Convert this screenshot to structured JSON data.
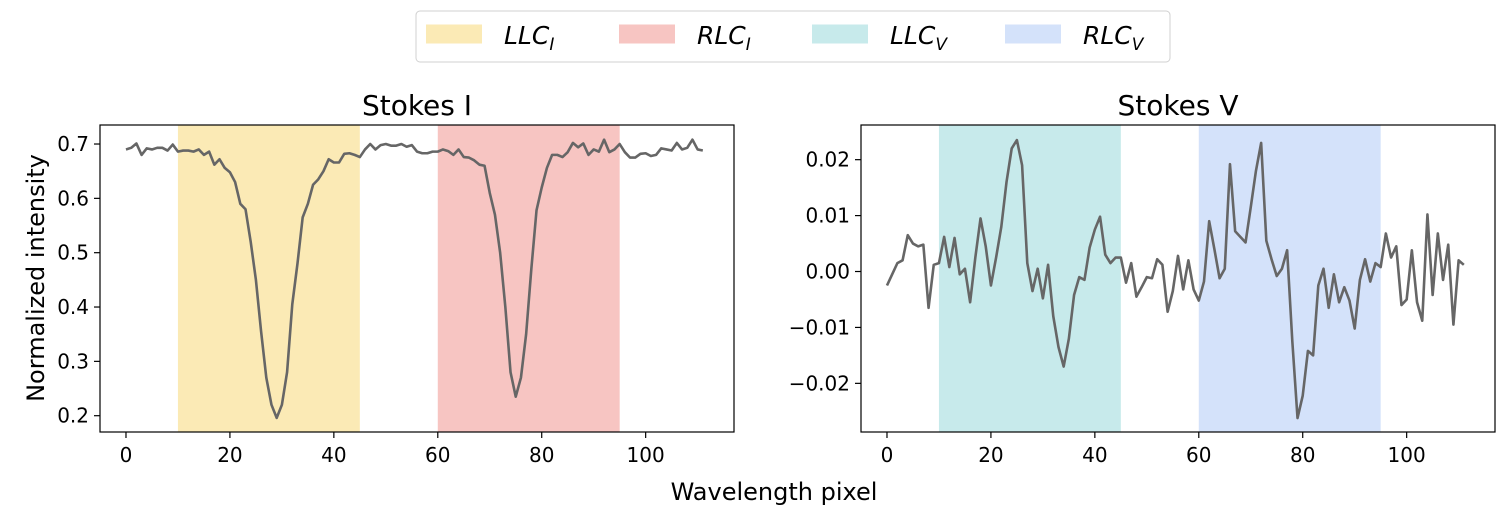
{
  "figure": {
    "xlabel": "Wavelength pixel",
    "ylabel": "Normalized intensity"
  },
  "legend": {
    "location": "top-center",
    "items": [
      {
        "main": "LLC",
        "sub": "I",
        "color": "#f8d56b",
        "alpha": 0.5
      },
      {
        "main": "RLC",
        "sub": "I",
        "color": "#f08c85",
        "alpha": 0.5
      },
      {
        "main": "LLC",
        "sub": "V",
        "color": "#8fd6d8",
        "alpha": 0.5
      },
      {
        "main": "RLC",
        "sub": "V",
        "color": "#a9c6f6",
        "alpha": 0.5
      }
    ]
  },
  "chart_data": [
    {
      "type": "line",
      "title": "Stokes I",
      "xlabel": "Wavelength pixel",
      "ylabel": "Normalized intensity",
      "xlim": [
        -5,
        117
      ],
      "ylim": [
        0.17,
        0.735
      ],
      "xticks": [
        0,
        20,
        40,
        60,
        80,
        100
      ],
      "yticks": [
        0.2,
        0.3,
        0.4,
        0.5,
        0.6,
        0.7
      ],
      "ytick_labels": [
        "0.2",
        "0.3",
        "0.4",
        "0.5",
        "0.6",
        "0.7"
      ],
      "line_color": "#666666",
      "bands": [
        {
          "label": "LLC_I",
          "x0": 10,
          "x1": 45,
          "color": "#f8d56b"
        },
        {
          "label": "RLC_I",
          "x0": 60,
          "x1": 95,
          "color": "#f08c85"
        }
      ],
      "series": [
        {
          "name": "Stokes I",
          "x": [
            0,
            1,
            2,
            3,
            4,
            5,
            6,
            7,
            8,
            9,
            10,
            11,
            12,
            13,
            14,
            15,
            16,
            17,
            18,
            19,
            20,
            21,
            22,
            23,
            24,
            25,
            26,
            27,
            28,
            29,
            30,
            31,
            32,
            33,
            34,
            35,
            36,
            37,
            38,
            39,
            40,
            41,
            42,
            43,
            44,
            45,
            46,
            47,
            48,
            49,
            50,
            51,
            52,
            53,
            54,
            55,
            56,
            57,
            58,
            59,
            60,
            61,
            62,
            63,
            64,
            65,
            66,
            67,
            68,
            69,
            70,
            71,
            72,
            73,
            74,
            75,
            76,
            77,
            78,
            79,
            80,
            81,
            82,
            83,
            84,
            85,
            86,
            87,
            88,
            89,
            90,
            91,
            92,
            93,
            94,
            95,
            96,
            97,
            98,
            99,
            100,
            101,
            102,
            103,
            104,
            105,
            106,
            107,
            108,
            109,
            110,
            111
          ],
          "values": [
            0.69,
            0.693,
            0.701,
            0.68,
            0.692,
            0.69,
            0.693,
            0.693,
            0.688,
            0.699,
            0.686,
            0.688,
            0.688,
            0.686,
            0.69,
            0.68,
            0.686,
            0.662,
            0.672,
            0.656,
            0.648,
            0.63,
            0.59,
            0.58,
            0.52,
            0.45,
            0.355,
            0.27,
            0.22,
            0.196,
            0.22,
            0.28,
            0.405,
            0.48,
            0.565,
            0.59,
            0.625,
            0.635,
            0.65,
            0.672,
            0.666,
            0.666,
            0.682,
            0.683,
            0.68,
            0.676,
            0.69,
            0.7,
            0.69,
            0.698,
            0.7,
            0.697,
            0.697,
            0.7,
            0.695,
            0.698,
            0.686,
            0.683,
            0.683,
            0.686,
            0.686,
            0.69,
            0.687,
            0.68,
            0.69,
            0.676,
            0.675,
            0.67,
            0.662,
            0.66,
            0.61,
            0.57,
            0.5,
            0.4,
            0.28,
            0.235,
            0.27,
            0.35,
            0.47,
            0.578,
            0.62,
            0.656,
            0.68,
            0.68,
            0.676,
            0.685,
            0.702,
            0.694,
            0.701,
            0.68,
            0.69,
            0.686,
            0.708,
            0.685,
            0.69,
            0.7,
            0.685,
            0.675,
            0.675,
            0.682,
            0.683,
            0.678,
            0.68,
            0.692,
            0.69,
            0.688,
            0.702,
            0.69,
            0.693,
            0.708,
            0.69,
            0.688
          ]
        }
      ]
    },
    {
      "type": "line",
      "title": "Stokes V",
      "xlabel": "Wavelength pixel",
      "ylabel": "",
      "xlim": [
        -5,
        117
      ],
      "ylim": [
        -0.0287,
        0.0262
      ],
      "xticks": [
        0,
        20,
        40,
        60,
        80,
        100
      ],
      "yticks": [
        -0.02,
        -0.01,
        0.0,
        0.01,
        0.02
      ],
      "ytick_labels": [
        "−0.02",
        "−0.01",
        "0.00",
        "0.01",
        "0.02"
      ],
      "line_color": "#666666",
      "bands": [
        {
          "label": "LLC_V",
          "x0": 10,
          "x1": 45,
          "color": "#8fd6d8"
        },
        {
          "label": "RLC_V",
          "x0": 60,
          "x1": 95,
          "color": "#a9c6f6"
        }
      ],
      "series": [
        {
          "name": "Stokes V",
          "x": [
            0,
            1,
            2,
            3,
            4,
            5,
            6,
            7,
            8,
            9,
            10,
            11,
            12,
            13,
            14,
            15,
            16,
            17,
            18,
            19,
            20,
            21,
            22,
            23,
            24,
            25,
            26,
            27,
            28,
            29,
            30,
            31,
            32,
            33,
            34,
            35,
            36,
            37,
            38,
            39,
            40,
            41,
            42,
            43,
            44,
            45,
            46,
            47,
            48,
            49,
            50,
            51,
            52,
            53,
            54,
            55,
            56,
            57,
            58,
            59,
            60,
            61,
            62,
            63,
            64,
            65,
            66,
            67,
            68,
            69,
            70,
            71,
            72,
            73,
            74,
            75,
            76,
            77,
            78,
            79,
            80,
            81,
            82,
            83,
            84,
            85,
            86,
            87,
            88,
            89,
            90,
            91,
            92,
            93,
            94,
            95,
            96,
            97,
            98,
            99,
            100,
            101,
            102,
            103,
            104,
            105,
            106,
            107,
            108,
            109,
            110,
            111
          ],
          "values": [
            -0.0025,
            -0.0005,
            0.0015,
            0.002,
            0.0065,
            0.005,
            0.0045,
            0.0048,
            -0.0065,
            0.0012,
            0.0015,
            0.0062,
            0.0008,
            0.006,
            -0.0005,
            0.0005,
            -0.0055,
            0.0025,
            0.0095,
            0.0045,
            -0.0025,
            0.0025,
            0.008,
            0.016,
            0.022,
            0.0235,
            0.019,
            0.0015,
            -0.0035,
            0.0005,
            -0.0048,
            0.0012,
            -0.008,
            -0.0135,
            -0.017,
            -0.012,
            -0.0042,
            -0.001,
            -0.0015,
            0.0043,
            0.0075,
            0.0098,
            0.003,
            0.0015,
            0.0025,
            0.0025,
            -0.002,
            0.0015,
            -0.0045,
            -0.0028,
            -0.001,
            -0.0012,
            0.0022,
            0.0012,
            -0.0072,
            -0.0035,
            0.0028,
            -0.0032,
            0.002,
            -0.0032,
            -0.0052,
            -0.0018,
            0.009,
            0.004,
            -0.0012,
            0.0005,
            0.0192,
            0.0072,
            0.0062,
            0.0052,
            0.0115,
            0.018,
            0.023,
            0.0055,
            0.0022,
            -0.0008,
            0.0005,
            0.0038,
            -0.0125,
            -0.0262,
            -0.0222,
            -0.0142,
            -0.015,
            -0.0025,
            0.0005,
            -0.0065,
            -0.0005,
            -0.0055,
            -0.0028,
            -0.0052,
            -0.0102,
            -0.0015,
            0.0022,
            -0.0018,
            0.0015,
            0.0008,
            0.0068,
            0.0025,
            0.0045,
            -0.006,
            -0.005,
            0.0038,
            -0.0055,
            -0.0088,
            0.0102,
            -0.0042,
            0.0068,
            -0.0015,
            0.0048,
            -0.0095,
            0.002,
            0.0012
          ]
        }
      ]
    }
  ]
}
